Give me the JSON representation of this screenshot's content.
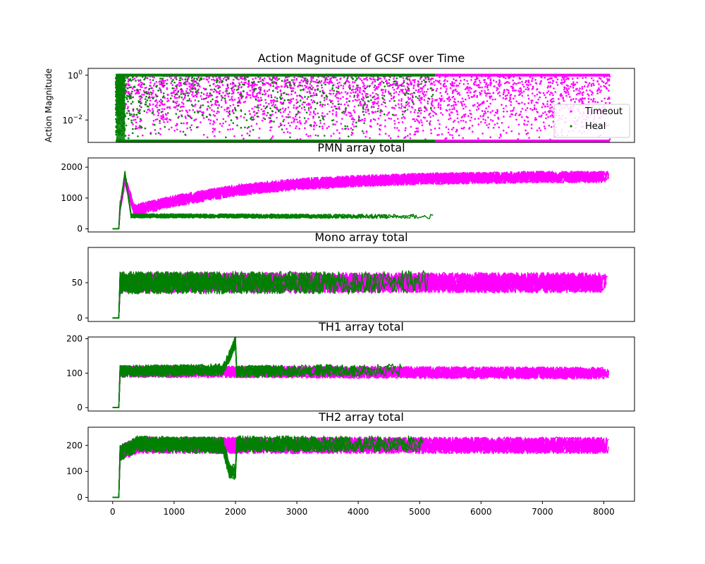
{
  "colors": {
    "timeout": "#ff00ff",
    "heal": "#008000",
    "axis": "#000000",
    "background": "#ffffff"
  },
  "x_ticks": [
    0,
    1000,
    2000,
    3000,
    4000,
    5000,
    6000,
    7000,
    8000
  ],
  "legend": {
    "placement": "right",
    "entries": [
      {
        "label": "Timeout",
        "color": "#ff00ff",
        "marker": "dot"
      },
      {
        "label": "Heal",
        "color": "#008000",
        "marker": "dot"
      }
    ]
  },
  "chart_data": [
    {
      "type": "scatter",
      "title": "Action Magnitude of GCSF over Time",
      "ylabel": "Action Magnitude",
      "yscale": "log",
      "ylim": [
        0.001,
        2
      ],
      "xlim": [
        -400,
        8500
      ],
      "y_ticks": [
        {
          "value": 1,
          "base": "10",
          "exp": "0"
        },
        {
          "value": 0.01,
          "base": "10",
          "exp": "−2"
        }
      ],
      "series": [
        {
          "name": "Timeout",
          "color": "#ff00ff",
          "x_range": [
            100,
            8100
          ],
          "y_range": [
            0.001,
            1
          ]
        },
        {
          "name": "Heal",
          "color": "#008000",
          "x_range": [
            50,
            5250
          ],
          "y_range": [
            0.001,
            1
          ]
        }
      ]
    },
    {
      "type": "line",
      "title": "PMN array total",
      "ylim": [
        -100,
        2300
      ],
      "xlim": [
        -400,
        8500
      ],
      "y_ticks": [
        0,
        1000,
        2000
      ],
      "series": [
        {
          "name": "Timeout",
          "color": "#ff00ff",
          "profile": [
            [
              0,
              0
            ],
            [
              100,
              0
            ],
            [
              110,
              600
            ],
            [
              200,
              1600
            ],
            [
              350,
              600
            ],
            [
              1000,
              900
            ],
            [
              2000,
              1250
            ],
            [
              3000,
              1450
            ],
            [
              4000,
              1550
            ],
            [
              5000,
              1620
            ],
            [
              6000,
              1650
            ],
            [
              7000,
              1680
            ],
            [
              8100,
              1680
            ]
          ],
          "spread": 240
        },
        {
          "name": "Heal",
          "color": "#008000",
          "profile": [
            [
              0,
              0
            ],
            [
              100,
              0
            ],
            [
              110,
              500
            ],
            [
              200,
              1800
            ],
            [
              300,
              420
            ],
            [
              1000,
              420
            ],
            [
              3000,
              410
            ],
            [
              5250,
              400
            ]
          ],
          "spread": 90
        }
      ]
    },
    {
      "type": "line",
      "title": "Mono array total",
      "ylim": [
        -5,
        100
      ],
      "xlim": [
        -400,
        8500
      ],
      "y_ticks": [
        0,
        50
      ],
      "series": [
        {
          "name": "Timeout",
          "color": "#ff00ff",
          "profile": [
            [
              0,
              0
            ],
            [
              100,
              0
            ],
            [
              110,
              50
            ],
            [
              8100,
              50
            ]
          ],
          "spread": 18
        },
        {
          "name": "Heal",
          "color": "#008000",
          "profile": [
            [
              0,
              0
            ],
            [
              100,
              0
            ],
            [
              110,
              50
            ],
            [
              4000,
              50
            ],
            [
              5250,
              52
            ]
          ],
          "spread": 20
        }
      ]
    },
    {
      "type": "line",
      "title": "TH1 array total",
      "ylim": [
        -10,
        205
      ],
      "xlim": [
        -400,
        8500
      ],
      "y_ticks": [
        0,
        100,
        200
      ],
      "series": [
        {
          "name": "Timeout",
          "color": "#ff00ff",
          "profile": [
            [
              0,
              0
            ],
            [
              100,
              0
            ],
            [
              110,
              105
            ],
            [
              8100,
              100
            ]
          ],
          "spread": 22
        },
        {
          "name": "Heal",
          "color": "#008000",
          "profile": [
            [
              0,
              0
            ],
            [
              100,
              0
            ],
            [
              110,
              105
            ],
            [
              1800,
              110
            ],
            [
              2000,
              190
            ],
            [
              2001,
              105
            ],
            [
              5250,
              110
            ]
          ],
          "spread": 22
        }
      ]
    },
    {
      "type": "line",
      "title": "TH2 array total",
      "ylim": [
        -15,
        270
      ],
      "xlim": [
        -400,
        8500
      ],
      "y_ticks": [
        0,
        100,
        200
      ],
      "series": [
        {
          "name": "Timeout",
          "color": "#ff00ff",
          "profile": [
            [
              0,
              0
            ],
            [
              100,
              0
            ],
            [
              110,
              170
            ],
            [
              400,
              200
            ],
            [
              8100,
              200
            ]
          ],
          "spread": 40
        },
        {
          "name": "Heal",
          "color": "#008000",
          "profile": [
            [
              0,
              0
            ],
            [
              100,
              0
            ],
            [
              110,
              170
            ],
            [
              400,
              205
            ],
            [
              1800,
              200
            ],
            [
              1900,
              100
            ],
            [
              2000,
              100
            ],
            [
              2001,
              205
            ],
            [
              5250,
              205
            ]
          ],
          "spread": 40
        }
      ]
    }
  ]
}
